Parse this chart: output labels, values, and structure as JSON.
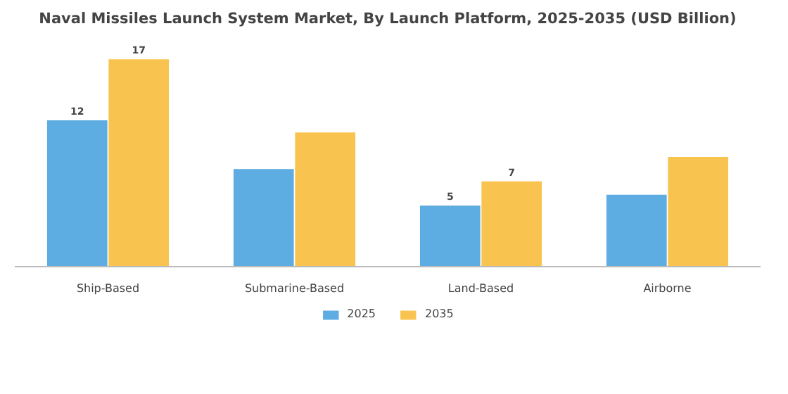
{
  "chart_data": {
    "type": "bar",
    "title": "Naval Missiles Launch System Market, By Launch Platform, 2025-2035 (USD Billion)",
    "categories": [
      "Ship-Based",
      "Submarine-Based",
      "Land-Based",
      "Airborne"
    ],
    "series": [
      {
        "name": "2025",
        "color": "#5dade2",
        "values": [
          12,
          8,
          5,
          5.9
        ],
        "value_labels": [
          "12",
          null,
          "5",
          null
        ]
      },
      {
        "name": "2035",
        "color": "#f8c44f",
        "values": [
          17,
          11,
          7,
          9
        ],
        "value_labels": [
          "17",
          null,
          "7",
          null
        ]
      }
    ],
    "legend": "bottom"
  }
}
